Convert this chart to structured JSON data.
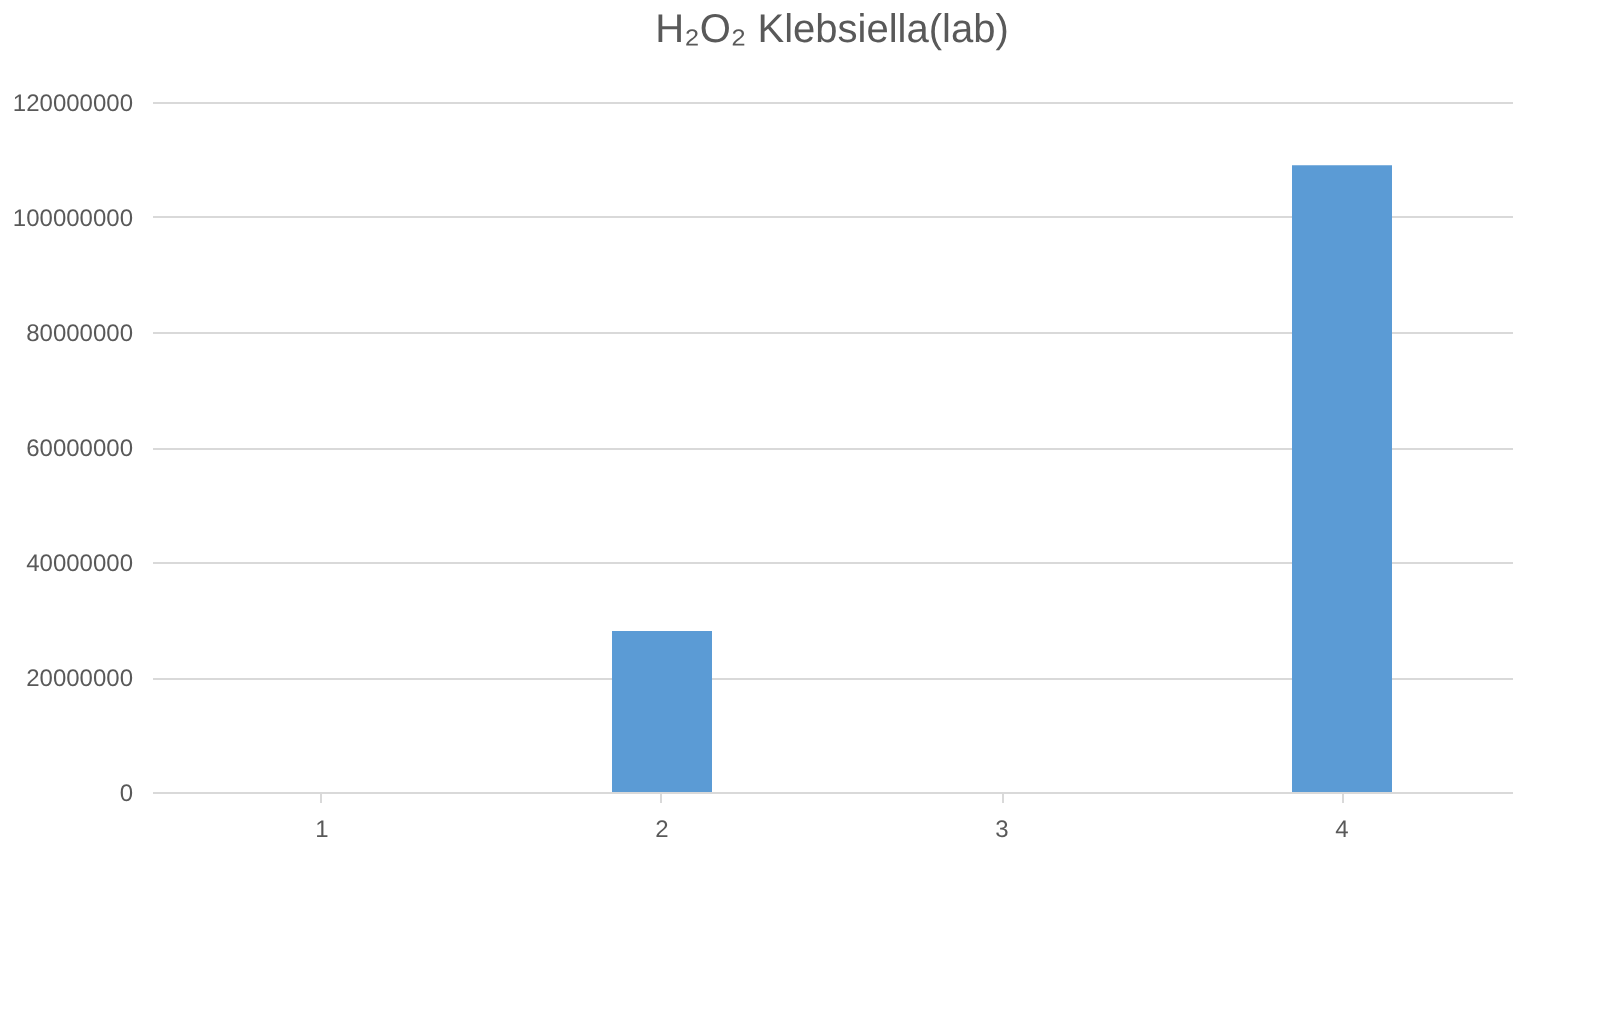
{
  "chart_data": {
    "type": "bar",
    "title": "H₂O₂ Klebsiella(lab)",
    "categories": [
      "1",
      "2",
      "3",
      "4"
    ],
    "values": [
      0,
      28000000,
      0,
      109000000
    ],
    "color": "#5b9bd5",
    "ylim": [
      0,
      120000000
    ],
    "yticks": [
      0,
      20000000,
      40000000,
      60000000,
      80000000,
      100000000,
      120000000
    ],
    "grid": "y"
  }
}
